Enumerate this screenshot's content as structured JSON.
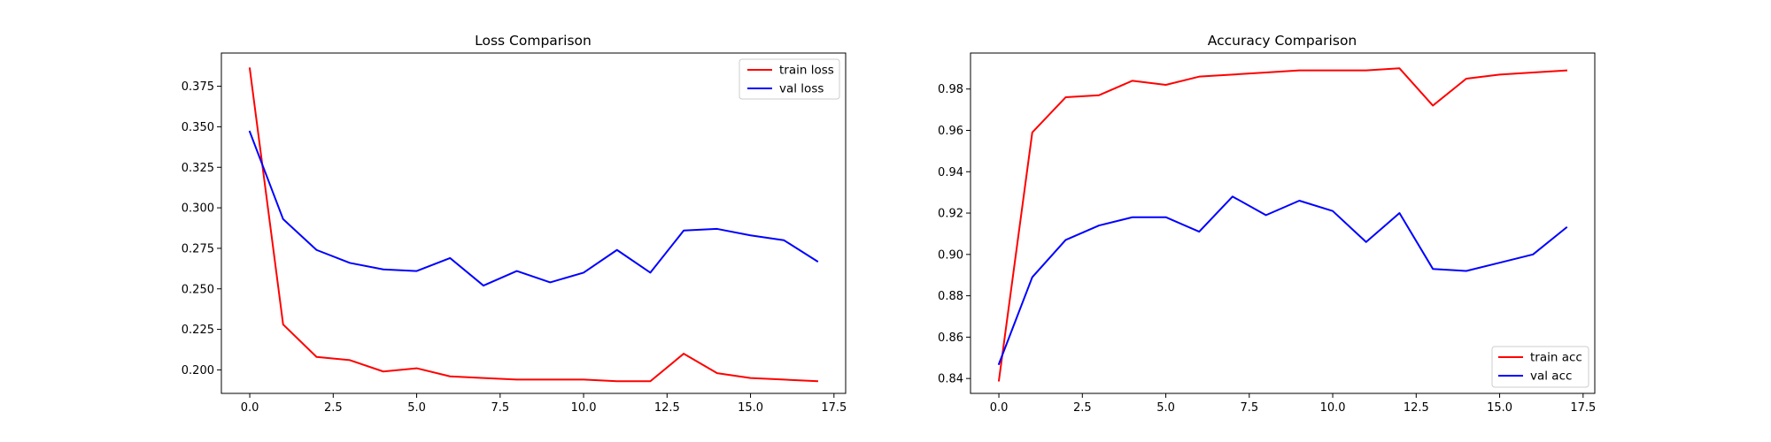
{
  "chart_data": [
    {
      "type": "line",
      "title": "Loss Comparison",
      "xlabel": "",
      "ylabel": "",
      "xlim": [
        -0.85,
        17.85
      ],
      "ylim": [
        0.1855,
        0.3955
      ],
      "xticks": [
        0.0,
        2.5,
        5.0,
        7.5,
        10.0,
        12.5,
        15.0,
        17.5
      ],
      "xtick_labels": [
        "0.0",
        "2.5",
        "5.0",
        "7.5",
        "10.0",
        "12.5",
        "15.0",
        "17.5"
      ],
      "yticks": [
        0.2,
        0.225,
        0.25,
        0.275,
        0.3,
        0.325,
        0.35,
        0.375
      ],
      "ytick_labels": [
        "0.200",
        "0.225",
        "0.250",
        "0.275",
        "0.300",
        "0.325",
        "0.350",
        "0.375"
      ],
      "grid": false,
      "legend_position": "top-right",
      "x": [
        0,
        1,
        2,
        3,
        4,
        5,
        6,
        7,
        8,
        9,
        10,
        11,
        12,
        13,
        14,
        15,
        16,
        17
      ],
      "series": [
        {
          "name": "train loss",
          "color": "#ff0000",
          "values": [
            0.386,
            0.228,
            0.208,
            0.206,
            0.199,
            0.201,
            0.196,
            0.195,
            0.194,
            0.194,
            0.194,
            0.193,
            0.193,
            0.21,
            0.198,
            0.195,
            0.194,
            0.193
          ]
        },
        {
          "name": "val loss",
          "color": "#0000ff",
          "values": [
            0.347,
            0.293,
            0.274,
            0.266,
            0.262,
            0.261,
            0.269,
            0.252,
            0.261,
            0.254,
            0.26,
            0.274,
            0.26,
            0.286,
            0.287,
            0.283,
            0.28,
            0.267
          ]
        }
      ]
    },
    {
      "type": "line",
      "title": "Accuracy Comparison",
      "xlabel": "",
      "ylabel": "",
      "xlim": [
        -0.85,
        17.85
      ],
      "ylim": [
        0.8328,
        0.9974
      ],
      "xticks": [
        0.0,
        2.5,
        5.0,
        7.5,
        10.0,
        12.5,
        15.0,
        17.5
      ],
      "xtick_labels": [
        "0.0",
        "2.5",
        "5.0",
        "7.5",
        "10.0",
        "12.5",
        "15.0",
        "17.5"
      ],
      "yticks": [
        0.84,
        0.86,
        0.88,
        0.9,
        0.92,
        0.94,
        0.96,
        0.98
      ],
      "ytick_labels": [
        "0.84",
        "0.86",
        "0.88",
        "0.90",
        "0.92",
        "0.94",
        "0.96",
        "0.98"
      ],
      "grid": false,
      "legend_position": "bottom-right",
      "x": [
        0,
        1,
        2,
        3,
        4,
        5,
        6,
        7,
        8,
        9,
        10,
        11,
        12,
        13,
        14,
        15,
        16,
        17
      ],
      "series": [
        {
          "name": "train acc",
          "color": "#ff0000",
          "values": [
            0.839,
            0.959,
            0.976,
            0.977,
            0.984,
            0.982,
            0.986,
            0.987,
            0.988,
            0.989,
            0.989,
            0.989,
            0.99,
            0.972,
            0.985,
            0.987,
            0.988,
            0.989
          ]
        },
        {
          "name": "val acc",
          "color": "#0000ff",
          "values": [
            0.847,
            0.889,
            0.907,
            0.914,
            0.918,
            0.918,
            0.911,
            0.928,
            0.919,
            0.926,
            0.921,
            0.906,
            0.92,
            0.893,
            0.892,
            0.896,
            0.9,
            0.913
          ]
        }
      ]
    }
  ]
}
